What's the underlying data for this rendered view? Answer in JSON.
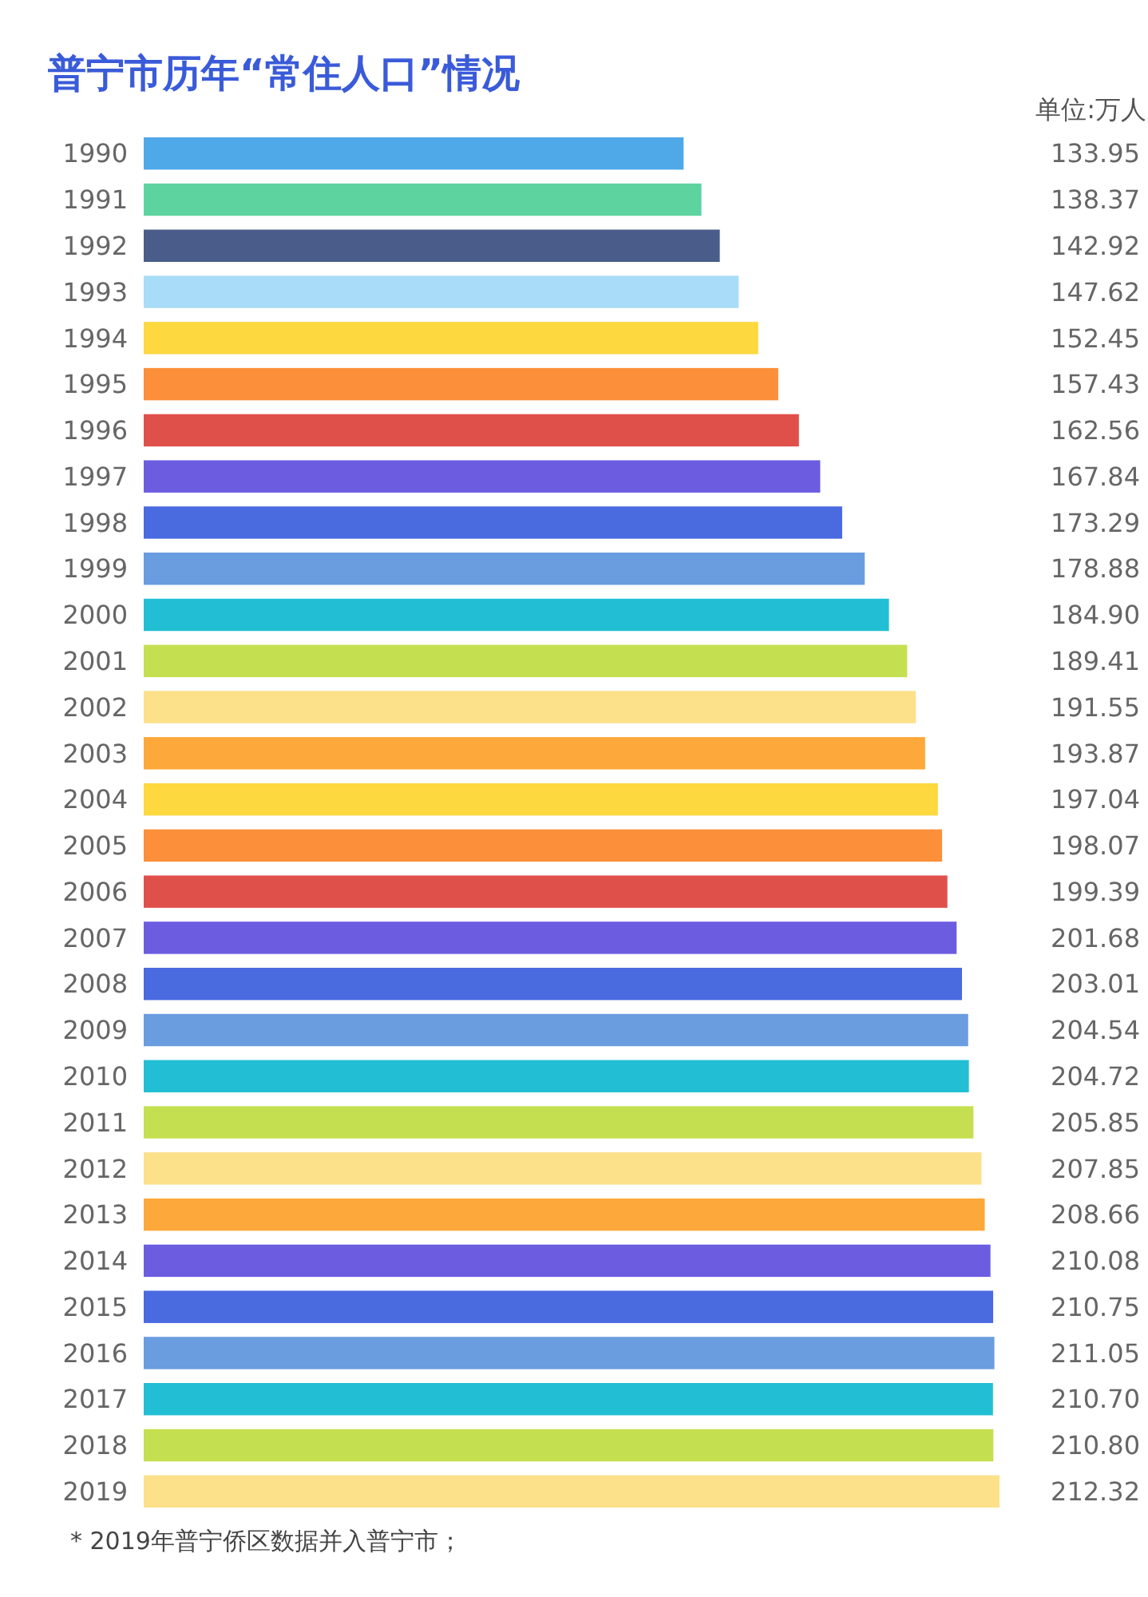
{
  "chart_data": {
    "type": "bar",
    "orientation": "horizontal",
    "title": "普宁市历年“常住人口”情况",
    "annotations": [
      "单位:万人",
      "* 2019年普宁侨区数据并入普宁市；"
    ],
    "categories": [
      "1990",
      "1991",
      "1992",
      "1993",
      "1994",
      "1995",
      "1996",
      "1997",
      "1998",
      "1999",
      "2000",
      "2001",
      "2002",
      "2003",
      "2004",
      "2005",
      "2006",
      "2007",
      "2008",
      "2009",
      "2010",
      "2011",
      "2012",
      "2013",
      "2014",
      "2015",
      "2016",
      "2017",
      "2018",
      "2019"
    ],
    "values": [
      133.95,
      138.37,
      142.92,
      147.62,
      152.45,
      157.43,
      162.56,
      167.84,
      173.29,
      178.88,
      184.9,
      189.41,
      191.55,
      193.87,
      197.04,
      198.07,
      199.39,
      201.68,
      203.01,
      204.54,
      204.72,
      205.85,
      207.85,
      208.66,
      210.08,
      210.75,
      211.05,
      210.7,
      210.8,
      212.32
    ],
    "value_labels": [
      "133.95",
      "138.37",
      "142.92",
      "147.62",
      "152.45",
      "157.43",
      "162.56",
      "167.84",
      "173.29",
      "178.88",
      "184.90",
      "189.41",
      "191.55",
      "193.87",
      "197.04",
      "198.07",
      "199.39",
      "201.68",
      "203.01",
      "204.54",
      "204.72",
      "205.85",
      "207.85",
      "208.66",
      "210.08",
      "210.75",
      "211.05",
      "210.70",
      "210.80",
      "212.32"
    ],
    "colors": [
      "#4fa8e8",
      "#5dd3a0",
      "#4a5d8a",
      "#a8dcf8",
      "#fdd83f",
      "#fc8f3a",
      "#e0504a",
      "#6b5ce0",
      "#4a6ae0",
      "#6a9ce0",
      "#22bfd4",
      "#c4e050",
      "#fde08a",
      "#fca83a",
      "#fdd83f",
      "#fc8f3a",
      "#e0504a",
      "#6b5ce0",
      "#4a6ae0",
      "#6a9ce0",
      "#22bfd4",
      "#c4e050",
      "#fde08a",
      "#fca83a",
      "#6b5ce0",
      "#4a6ae0",
      "#6a9ce0",
      "#22bfd4",
      "#c4e050",
      "#fde08a"
    ],
    "tick_labels": "y"
  }
}
